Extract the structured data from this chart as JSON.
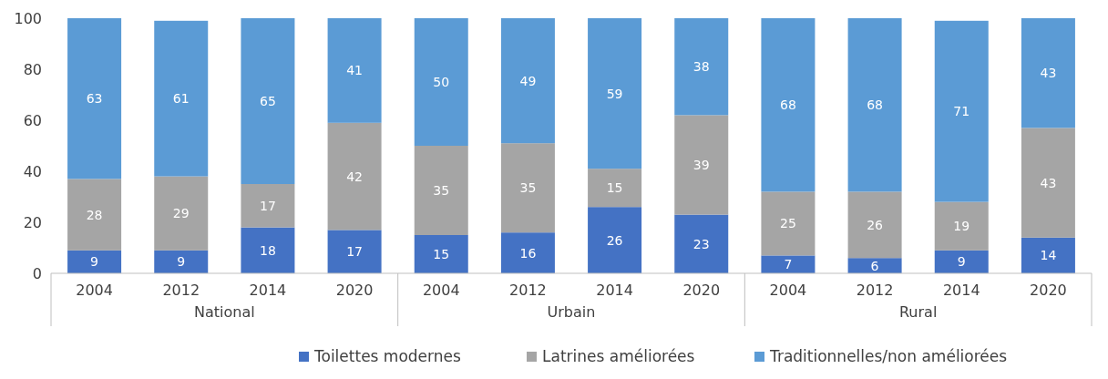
{
  "chart_data": {
    "type": "bar",
    "stacked": true,
    "data_labels": true,
    "legend": "bottom",
    "grid": false,
    "categories": [
      "2004",
      "2012",
      "2014",
      "2020",
      "2004",
      "2012",
      "2014",
      "2020",
      "2004",
      "2012",
      "2014",
      "2020"
    ],
    "series": [
      {
        "name": "Toilettes modernes",
        "color": "#4472c4",
        "values": [
          9,
          9,
          18,
          17,
          15,
          16,
          26,
          23,
          7,
          6,
          9,
          14
        ]
      },
      {
        "name": "Latrines améliorées",
        "color": "#a5a5a5",
        "values": [
          28,
          29,
          17,
          42,
          35,
          35,
          15,
          39,
          25,
          26,
          19,
          43
        ]
      },
      {
        "name": "Traditionnelles/non améliorées",
        "color": "#5b9bd5",
        "values": [
          63,
          61,
          65,
          41,
          50,
          49,
          59,
          38,
          68,
          68,
          71,
          43
        ]
      }
    ],
    "ylim": [
      0,
      100
    ],
    "yticks": [
      0,
      20,
      40,
      60,
      80,
      100
    ],
    "annotations": [
      "National",
      "Urbain",
      "Rural"
    ]
  }
}
